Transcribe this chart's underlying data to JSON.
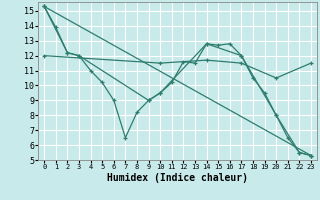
{
  "xlabel": "Humidex (Indice chaleur)",
  "background_color": "#c8eaea",
  "grid_color": "#ffffff",
  "line_color": "#2e7d6e",
  "xlim": [
    -0.5,
    23.5
  ],
  "ylim": [
    5,
    15.6
  ],
  "yticks": [
    5,
    6,
    7,
    8,
    9,
    10,
    11,
    12,
    13,
    14,
    15
  ],
  "xticks": [
    0,
    1,
    2,
    3,
    4,
    5,
    6,
    7,
    8,
    9,
    10,
    11,
    12,
    13,
    14,
    15,
    16,
    17,
    18,
    19,
    20,
    21,
    22,
    23
  ],
  "lines": [
    {
      "x": [
        0,
        1,
        2,
        3,
        4,
        5,
        6,
        7,
        8,
        9,
        10,
        11,
        12,
        13,
        14,
        15,
        16,
        17,
        18,
        19,
        20,
        21,
        22,
        23
      ],
      "y": [
        15.3,
        13.9,
        12.2,
        12.0,
        11.0,
        10.2,
        9.0,
        6.5,
        8.2,
        9.0,
        9.5,
        10.2,
        11.6,
        11.5,
        12.8,
        12.7,
        12.8,
        12.0,
        10.5,
        9.5,
        8.0,
        6.5,
        5.5,
        5.3
      ]
    },
    {
      "x": [
        0,
        2,
        3,
        9,
        10,
        14,
        17,
        20,
        22,
        23
      ],
      "y": [
        15.3,
        12.2,
        12.0,
        9.0,
        9.5,
        12.8,
        12.0,
        8.0,
        5.5,
        5.3
      ]
    },
    {
      "x": [
        0,
        23
      ],
      "y": [
        15.3,
        5.3
      ]
    },
    {
      "x": [
        0,
        10,
        14,
        17,
        20,
        23
      ],
      "y": [
        12.0,
        11.5,
        11.7,
        11.5,
        10.5,
        11.5
      ]
    }
  ]
}
